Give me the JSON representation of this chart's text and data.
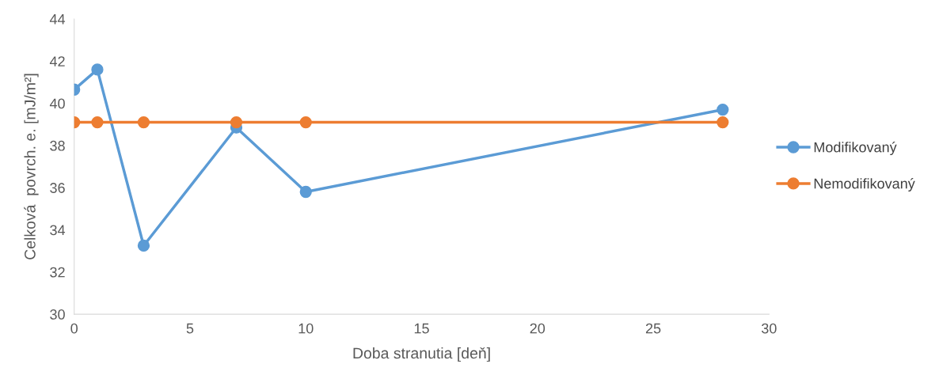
{
  "chart_data": {
    "type": "line",
    "xlabel": "Doba stranutia [deň]",
    "ylabel": "Celková  povrch. e. [mJ/m²]",
    "xlim": [
      0,
      30
    ],
    "xticks": [
      0,
      5,
      10,
      15,
      20,
      25,
      30
    ],
    "ylim": [
      30,
      44
    ],
    "yticks": [
      30,
      32,
      34,
      36,
      38,
      40,
      42,
      44
    ],
    "grid": false,
    "legend": "right",
    "marker": "circle",
    "line_style": "solid",
    "series": [
      {
        "name": "Modifikovaný",
        "color": "#5b9bd5",
        "x": [
          0,
          1,
          3,
          7,
          10,
          28
        ],
        "values": [
          40.65,
          41.6,
          33.25,
          38.85,
          35.8,
          39.7
        ]
      },
      {
        "name": "Nemodifikovaný",
        "color": "#ed7d31",
        "x": [
          0,
          1,
          3,
          7,
          10,
          28
        ],
        "values": [
          39.1,
          39.1,
          39.1,
          39.1,
          39.1,
          39.1
        ]
      }
    ]
  }
}
